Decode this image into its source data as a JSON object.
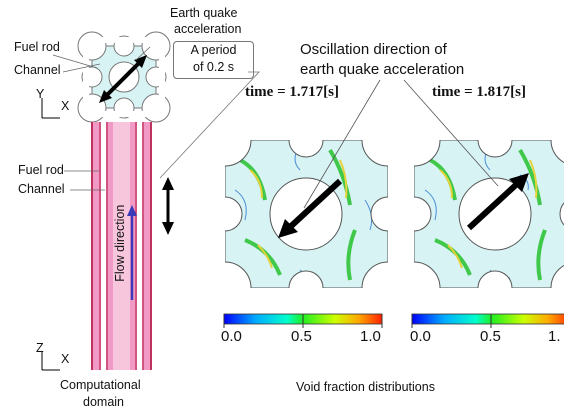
{
  "labels": {
    "earthquake_line1": "Earth quake",
    "earthquake_line2": "acceleration",
    "period_line1": "A period",
    "period_line2": "of 0.2 s",
    "fuel_rod_top": "Fuel rod",
    "channel_top": "Channel",
    "fuel_rod_mid": "Fuel rod",
    "channel_mid": "Channel",
    "flow_direction": "Flow direction",
    "oscillation_line1": "Oscillation direction of",
    "oscillation_line2": "earth quake acceleration",
    "time_left": "time = 1.717[s]",
    "time_right": "time = 1.817[s]",
    "computational_line1": "Computational",
    "computational_line2": "domain",
    "void_fraction": "Void fraction distributions",
    "axis_y": "Y",
    "axis_x_top": "X",
    "axis_z": "Z",
    "axis_x_bottom": "X"
  },
  "colorbar": {
    "ticks": [
      "0.0",
      "0.5",
      "1.0"
    ],
    "right_ticks": [
      "0.0",
      "0.5",
      "1."
    ]
  },
  "colors": {
    "rod_pink": "#f29ac6",
    "channel_edge": "#b0103a",
    "flow_arrow": "#3a3ab8",
    "panel_fill": "#d7f3f4",
    "contour_green": "#3fc84a",
    "contour_yellow": "#e6d23a"
  }
}
